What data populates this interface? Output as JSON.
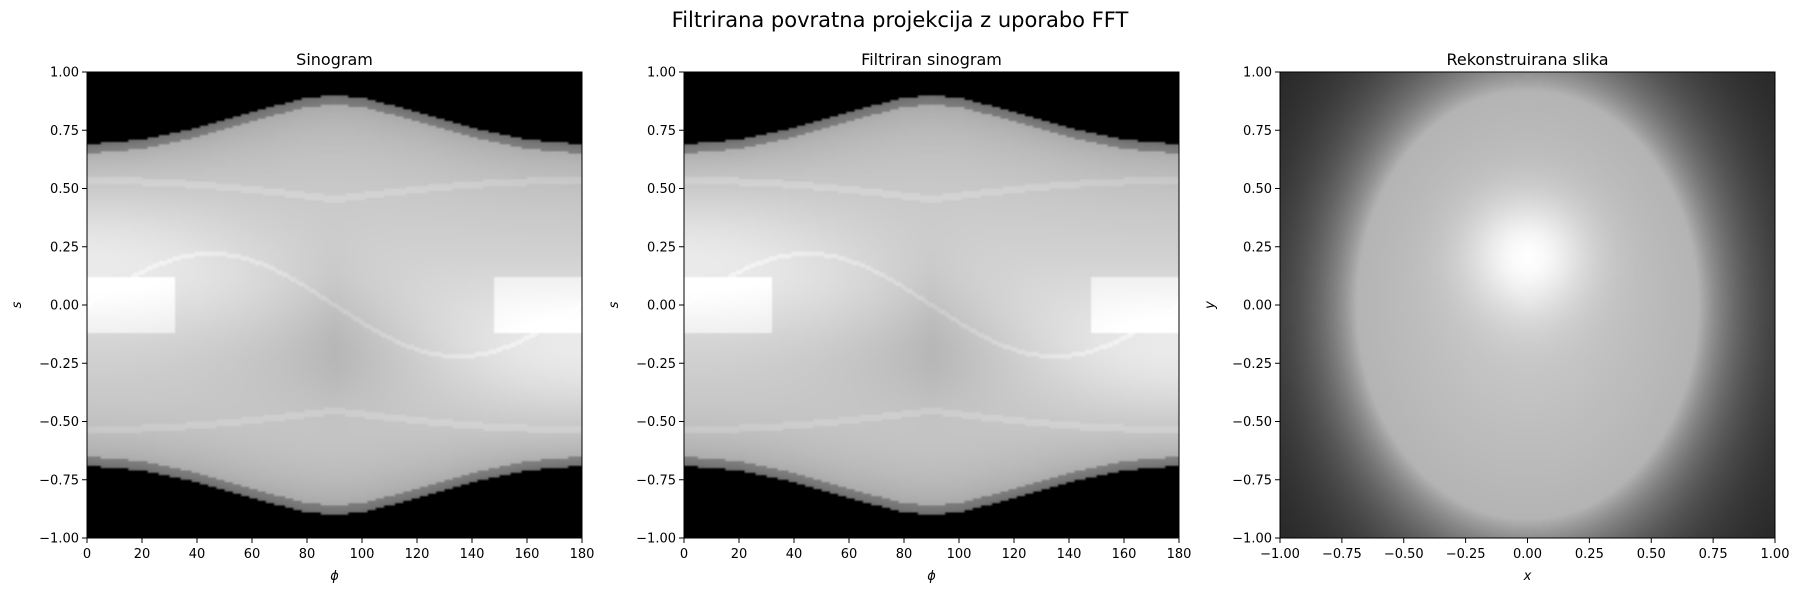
{
  "figure": {
    "title": "Filtrirana povratna projekcija z uporabo FFT"
  },
  "chart_data": [
    {
      "type": "heatmap",
      "title": "Sinogram",
      "xlabel": "ϕ",
      "ylabel": "s",
      "xlim": [
        0,
        180
      ],
      "ylim": [
        -1,
        1
      ],
      "xticks": [
        0,
        20,
        40,
        60,
        80,
        100,
        120,
        140,
        160,
        180
      ],
      "yticks": [
        -1.0,
        -0.75,
        -0.5,
        -0.25,
        0.0,
        0.25,
        0.5,
        0.75,
        1.0
      ],
      "colormap": "gray",
      "grid": false,
      "support_boundary": {
        "phi": [
          0,
          20,
          40,
          60,
          80,
          90,
          100,
          120,
          140,
          160,
          180
        ],
        "s_upper": [
          0.69,
          0.71,
          0.76,
          0.83,
          0.89,
          0.9,
          0.89,
          0.83,
          0.76,
          0.71,
          0.69
        ],
        "s_lower": [
          -0.69,
          -0.71,
          -0.76,
          -0.83,
          -0.89,
          -0.9,
          -0.89,
          -0.83,
          -0.76,
          -0.71,
          -0.69
        ]
      }
    },
    {
      "type": "heatmap",
      "title": "Filtriran sinogram",
      "xlabel": "ϕ",
      "ylabel": "s",
      "xlim": [
        0,
        180
      ],
      "ylim": [
        -1,
        1
      ],
      "xticks": [
        0,
        20,
        40,
        60,
        80,
        100,
        120,
        140,
        160,
        180
      ],
      "yticks": [
        -1.0,
        -0.75,
        -0.5,
        -0.25,
        0.0,
        0.25,
        0.5,
        0.75,
        1.0
      ],
      "colormap": "gray",
      "grid": false,
      "support_boundary": {
        "phi": [
          0,
          20,
          40,
          60,
          80,
          90,
          100,
          120,
          140,
          160,
          180
        ],
        "s_upper": [
          0.69,
          0.71,
          0.76,
          0.83,
          0.89,
          0.9,
          0.89,
          0.83,
          0.76,
          0.71,
          0.69
        ],
        "s_lower": [
          -0.69,
          -0.71,
          -0.76,
          -0.83,
          -0.89,
          -0.9,
          -0.89,
          -0.83,
          -0.76,
          -0.71,
          -0.69
        ]
      }
    },
    {
      "type": "heatmap",
      "title": "Rekonstruirana slika",
      "xlabel": "x",
      "ylabel": "y",
      "xlim": [
        -1,
        1
      ],
      "ylim": [
        -1,
        1
      ],
      "xticks": [
        -1.0,
        -0.75,
        -0.5,
        -0.25,
        0.0,
        0.25,
        0.5,
        0.75,
        1.0
      ],
      "yticks": [
        -1.0,
        -0.75,
        -0.5,
        -0.25,
        0.0,
        0.25,
        0.5,
        0.75,
        1.0
      ],
      "colormap": "gray",
      "grid": false,
      "ellipse": {
        "center": [
          0.0,
          0.0
        ],
        "semi_x": 0.69,
        "semi_y": 0.92
      },
      "bright_spot": {
        "center": [
          0.0,
          0.22
        ]
      }
    }
  ]
}
